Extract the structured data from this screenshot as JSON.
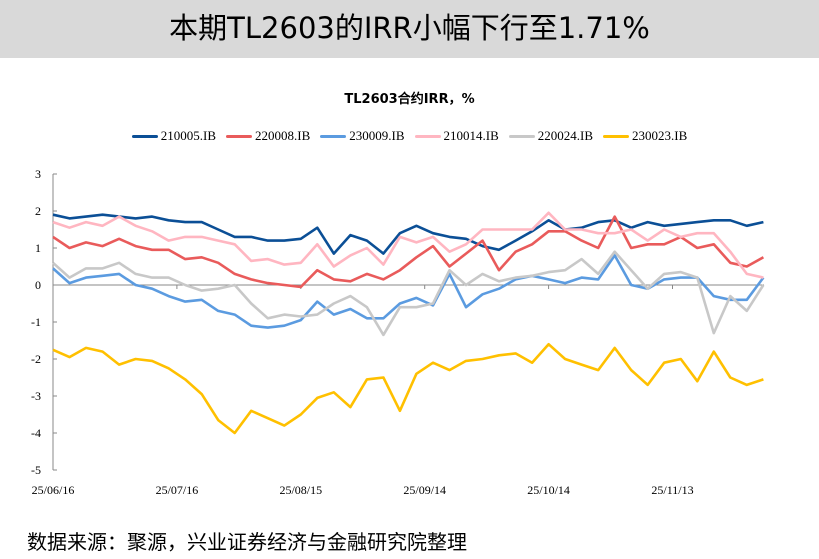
{
  "header": {
    "title": "本期TL2603的IRR小幅下行至1.71%"
  },
  "footer": {
    "source": "数据来源：聚源，兴业证券经济与金融研究院整理"
  },
  "chart_data": {
    "type": "line",
    "title": "TL2603合约IRR，%",
    "xlabel": "",
    "ylabel": "",
    "ylim": [
      -5,
      3
    ],
    "yticks": [
      "3",
      "2",
      "1",
      "0",
      "-1",
      "-2",
      "-3",
      "-4",
      "-5"
    ],
    "xticks": [
      "25/06/16",
      "25/07/16",
      "25/08/15",
      "25/09/14",
      "25/10/14",
      "25/11/13"
    ],
    "xtick_dates": [
      "2025-06-16",
      "2025-07-16",
      "2025-08-15",
      "2025-09-14",
      "2025-10-14",
      "2025-11-13"
    ],
    "grid": false,
    "legend_position": "top",
    "x": [
      "2025-06-16",
      "2025-06-20",
      "2025-06-24",
      "2025-06-28",
      "2025-07-02",
      "2025-07-06",
      "2025-07-10",
      "2025-07-14",
      "2025-07-18",
      "2025-07-22",
      "2025-07-26",
      "2025-07-30",
      "2025-08-03",
      "2025-08-07",
      "2025-08-11",
      "2025-08-15",
      "2025-08-19",
      "2025-08-23",
      "2025-08-27",
      "2025-08-31",
      "2025-09-04",
      "2025-09-08",
      "2025-09-12",
      "2025-09-16",
      "2025-09-20",
      "2025-09-24",
      "2025-09-28",
      "2025-10-02",
      "2025-10-06",
      "2025-10-10",
      "2025-10-14",
      "2025-10-18",
      "2025-10-22",
      "2025-10-26",
      "2025-10-30",
      "2025-11-03",
      "2025-11-07",
      "2025-11-11",
      "2025-11-15",
      "2025-11-19",
      "2025-11-23",
      "2025-11-27",
      "2025-12-01",
      "2025-12-05"
    ],
    "series": [
      {
        "name": "210005.IB",
        "color": "#0b4f96",
        "values": [
          1.9,
          1.8,
          1.85,
          1.9,
          1.85,
          1.8,
          1.85,
          1.75,
          1.7,
          1.7,
          1.5,
          1.3,
          1.3,
          1.2,
          1.2,
          1.25,
          1.55,
          0.85,
          1.35,
          1.2,
          0.85,
          1.4,
          1.6,
          1.4,
          1.3,
          1.25,
          1.05,
          0.95,
          1.2,
          1.45,
          1.75,
          1.5,
          1.55,
          1.7,
          1.75,
          1.55,
          1.7,
          1.6,
          1.65,
          1.7,
          1.75,
          1.75,
          1.6,
          1.7
        ]
      },
      {
        "name": "220008.IB",
        "color": "#e95b5b",
        "values": [
          1.3,
          1.0,
          1.15,
          1.05,
          1.25,
          1.05,
          0.95,
          0.95,
          0.7,
          0.75,
          0.6,
          0.3,
          0.15,
          0.05,
          0.0,
          -0.05,
          0.4,
          0.15,
          0.1,
          0.3,
          0.15,
          0.4,
          0.75,
          1.05,
          0.5,
          0.85,
          1.2,
          0.4,
          0.9,
          1.1,
          1.45,
          1.45,
          1.2,
          1.0,
          1.85,
          1.0,
          1.1,
          1.1,
          1.3,
          1.0,
          1.1,
          0.6,
          0.5,
          0.75
        ]
      },
      {
        "name": "230009.IB",
        "color": "#5b9be0",
        "values": [
          0.45,
          0.05,
          0.2,
          0.25,
          0.3,
          0.0,
          -0.1,
          -0.3,
          -0.45,
          -0.4,
          -0.7,
          -0.8,
          -1.1,
          -1.15,
          -1.1,
          -0.95,
          -0.45,
          -0.8,
          -0.65,
          -0.9,
          -0.9,
          -0.5,
          -0.35,
          -0.55,
          0.3,
          -0.6,
          -0.25,
          -0.1,
          0.15,
          0.25,
          0.15,
          0.05,
          0.2,
          0.15,
          0.8,
          0.0,
          -0.1,
          0.15,
          0.2,
          0.2,
          -0.3,
          -0.4,
          -0.4,
          0.2
        ]
      },
      {
        "name": "210014.IB",
        "color": "#ffb6c1",
        "values": [
          1.7,
          1.55,
          1.7,
          1.6,
          1.85,
          1.6,
          1.45,
          1.2,
          1.3,
          1.3,
          1.2,
          1.1,
          0.65,
          0.7,
          0.55,
          0.6,
          1.1,
          0.5,
          0.8,
          1.0,
          0.55,
          1.3,
          1.15,
          1.3,
          0.9,
          1.1,
          1.5,
          1.5,
          1.5,
          1.5,
          1.95,
          1.5,
          1.5,
          1.4,
          1.4,
          1.5,
          1.2,
          1.5,
          1.3,
          1.4,
          1.4,
          0.9,
          0.3,
          0.2
        ]
      },
      {
        "name": "220024.IB",
        "color": "#c8c8c8",
        "values": [
          0.6,
          0.2,
          0.45,
          0.45,
          0.6,
          0.3,
          0.2,
          0.2,
          0.0,
          -0.15,
          -0.1,
          0.0,
          -0.5,
          -0.9,
          -0.8,
          -0.85,
          -0.8,
          -0.5,
          -0.3,
          -0.6,
          -1.35,
          -0.6,
          -0.6,
          -0.5,
          0.4,
          0.0,
          0.3,
          0.1,
          0.2,
          0.25,
          0.35,
          0.4,
          0.7,
          0.3,
          0.9,
          0.4,
          -0.1,
          0.3,
          0.35,
          0.2,
          -1.3,
          -0.3,
          -0.7,
          0.0
        ]
      },
      {
        "name": "230023.IB",
        "color": "#ffc000",
        "values": [
          -1.75,
          -1.95,
          -1.7,
          -1.8,
          -2.15,
          -2.0,
          -2.05,
          -2.25,
          -2.55,
          -2.95,
          -3.65,
          -4.0,
          -3.4,
          -3.6,
          -3.8,
          -3.5,
          -3.05,
          -2.9,
          -3.3,
          -2.55,
          -2.5,
          -3.4,
          -2.4,
          -2.1,
          -2.3,
          -2.05,
          -2.0,
          -1.9,
          -1.85,
          -2.1,
          -1.6,
          -2.0,
          -2.15,
          -2.3,
          -1.7,
          -2.3,
          -2.7,
          -2.1,
          -2.0,
          -2.6,
          -1.8,
          -2.5,
          -2.7,
          -2.55
        ]
      }
    ]
  }
}
